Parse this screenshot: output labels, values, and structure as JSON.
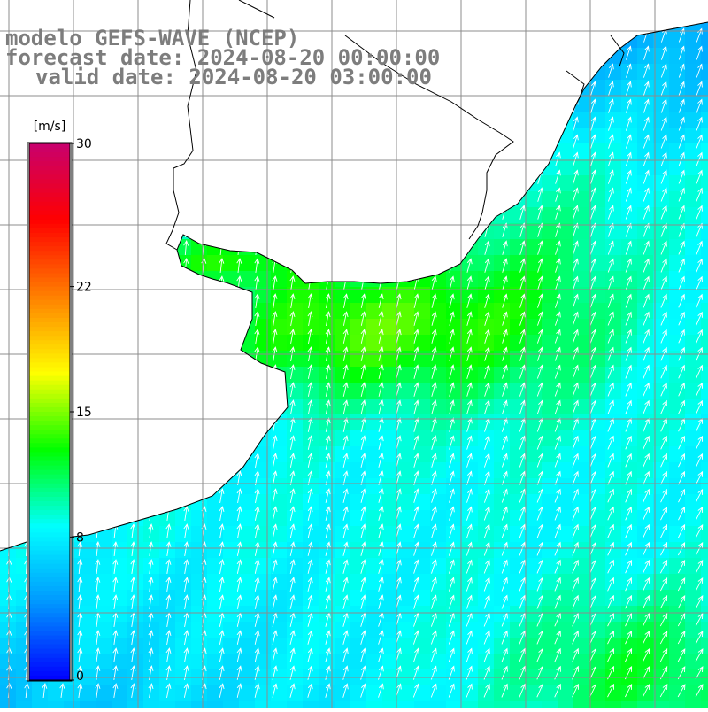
{
  "title": {
    "line1": "modelo GEFS-WAVE (NCEP)",
    "line2": "forecast date: 2024-08-20 00:00:00",
    "line3": "valid date: 2024-08-20 03:00:00"
  },
  "colorbar": {
    "unit": "[m/s]",
    "min": 0,
    "max": 30,
    "ticks": [
      {
        "value": 30,
        "label": "30"
      },
      {
        "value": 22,
        "label": "22"
      },
      {
        "value": 15,
        "label": "15"
      },
      {
        "value": 8,
        "label": "8"
      },
      {
        "value": 0,
        "label": "0"
      }
    ],
    "colors": [
      "#0000ff",
      "#0096ff",
      "#00ffff",
      "#00ff00",
      "#ffff00",
      "#ff8000",
      "#ff0000",
      "#c8006e"
    ]
  },
  "map": {
    "variable": "wind speed",
    "colors": {
      "land": "#ffffff",
      "grid": "#8c8c8c",
      "coast": "#000000",
      "arrows": "#ffffff"
    }
  }
}
